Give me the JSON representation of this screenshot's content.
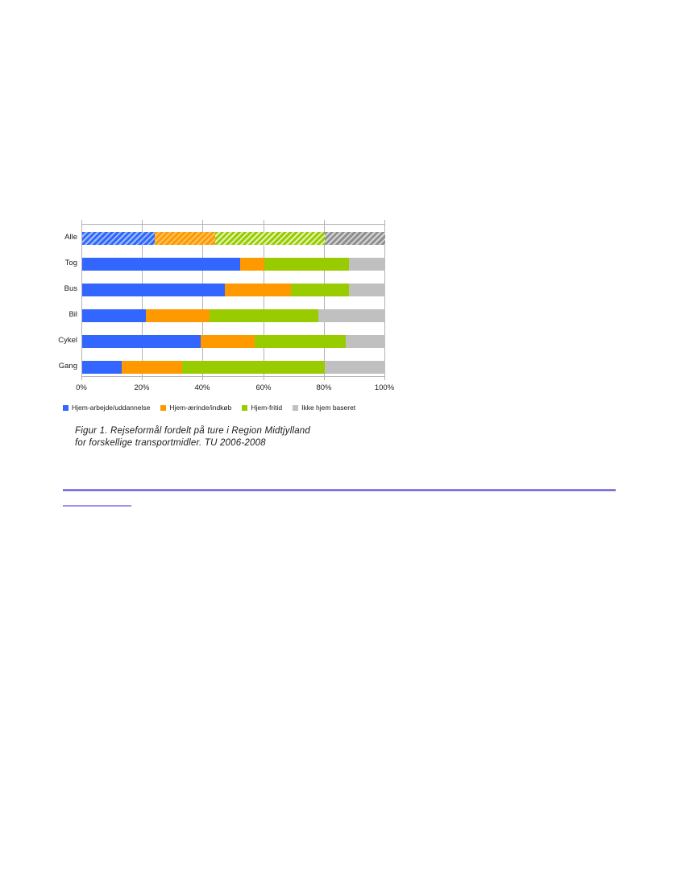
{
  "caption": {
    "line1": "Figur 1. Rejseformål fordelt på ture i Region Midtjylland",
    "line2": "for forskellige transportmidler. TU 2006-2008"
  },
  "chart_data": {
    "type": "bar",
    "orientation": "horizontal",
    "stacked": true,
    "unit": "%",
    "categories": [
      "Alle",
      "Tog",
      "Bus",
      "Bil",
      "Cykel",
      "Gang"
    ],
    "series": [
      {
        "name": "Hjem-arbejde/uddannelse",
        "color": "#3366ff",
        "hatch_light": "#9fc2f2",
        "values": [
          24,
          52,
          47,
          21,
          39,
          13
        ]
      },
      {
        "name": "Hjem-ærinde/indkøb",
        "color": "#ff9900",
        "hatch_light": "#fdc464",
        "values": [
          20,
          8,
          22,
          21,
          18,
          20
        ]
      },
      {
        "name": "Hjem-fritid",
        "color": "#99cc00",
        "hatch_light": "#e4f4be",
        "values": [
          36,
          28,
          19,
          36,
          30,
          47
        ]
      },
      {
        "name": "Ikke hjem baseret",
        "color": "#c0c0c0",
        "hatch_color": "#8f8f8f",
        "hatch_light": "#d6d6d6",
        "values": [
          20,
          12,
          12,
          22,
          13,
          20
        ]
      }
    ],
    "x_axis": {
      "min": 0,
      "max": 100,
      "ticks": [
        "0%",
        "20%",
        "40%",
        "60%",
        "80%",
        "100%"
      ]
    },
    "hatched_category": "Alle",
    "legend_position": "bottom",
    "grid": true,
    "gridline_color": "#b3b3b3"
  }
}
